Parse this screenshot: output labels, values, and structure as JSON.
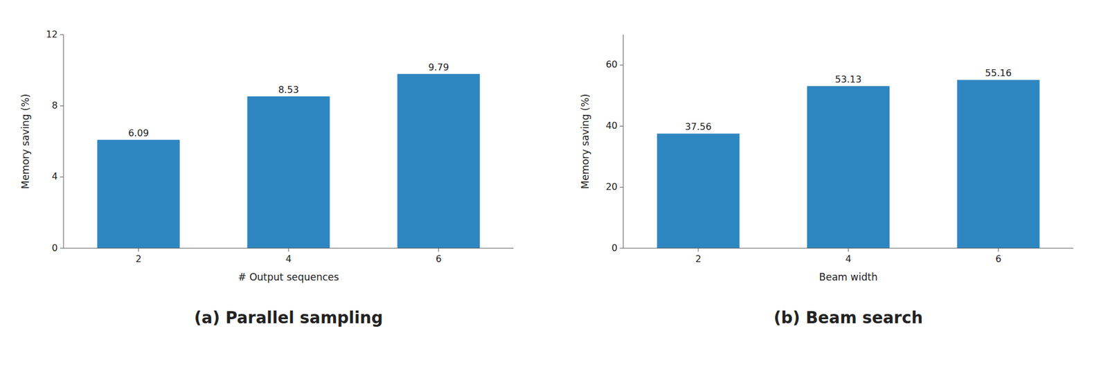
{
  "chart_data": [
    {
      "type": "bar",
      "title": "(a) Parallel sampling",
      "xlabel": "# Output sequences",
      "ylabel": "Memory saving (%)",
      "categories": [
        "2",
        "4",
        "6"
      ],
      "values": [
        6.09,
        8.53,
        9.79
      ],
      "color": "#2e86c1",
      "ylim": [
        0,
        12
      ],
      "yticks": [
        0,
        4,
        8,
        12
      ],
      "data_labels": true
    },
    {
      "type": "bar",
      "title": "(b) Beam search",
      "xlabel": "Beam width",
      "ylabel": "Memory saving (%)",
      "categories": [
        "2",
        "4",
        "6"
      ],
      "values": [
        37.56,
        53.13,
        55.16
      ],
      "color": "#2e86c1",
      "ylim": [
        0,
        70
      ],
      "yticks": [
        0,
        20,
        40,
        60
      ],
      "data_labels": true
    }
  ]
}
